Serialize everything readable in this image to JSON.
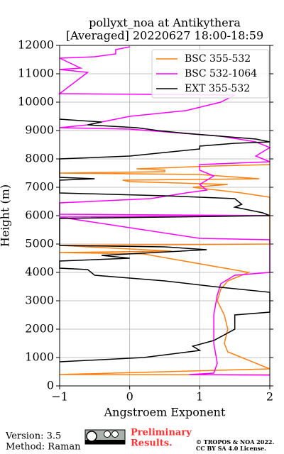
{
  "chart_data": {
    "type": "line",
    "title": "pollyxt_noa at Antikythera",
    "subtitle": "[Averaged] 20220627 18:00-18:59",
    "x_label": "Angstroem Exponent",
    "y_label": "Height (m)",
    "xlim": [
      -1,
      2
    ],
    "ylim": [
      0,
      12000
    ],
    "xticks": [
      {
        "value": -1,
        "label": "−1"
      },
      0,
      1,
      2
    ],
    "yticks": [
      0,
      1000,
      2000,
      3000,
      4000,
      5000,
      6000,
      7000,
      8000,
      9000,
      10000,
      11000,
      12000
    ],
    "grid": true,
    "legend": "upper right",
    "series": [
      {
        "name": "BSC 355-532",
        "color": "#ff7f0e",
        "heights": [
          7800,
          7750,
          7650,
          7600,
          7550,
          7500,
          7450,
          7300,
          7250,
          7200,
          7100,
          7000,
          6800,
          6650,
          5000,
          4950,
          4750,
          4700,
          4650,
          4000,
          3900,
          3700,
          3400,
          3000,
          2500,
          2000,
          1500,
          1200,
          1000,
          600,
          400,
          390
        ],
        "values": [
          2.0,
          1.2,
          0.1,
          0.5,
          0.5,
          -1.0,
          1.0,
          1.85,
          -0.1,
          0.0,
          1.4,
          0.9,
          1.6,
          2.0,
          2.0,
          -1.0,
          0.6,
          -1.0,
          0.2,
          1.7,
          1.6,
          1.4,
          1.3,
          1.25,
          1.35,
          1.4,
          1.35,
          1.4,
          1.6,
          2.0,
          -1.0,
          2.0
        ]
      },
      {
        "name": "BSC 532-1064",
        "color": "#ff00ff",
        "heights": [
          11950,
          11850,
          11700,
          11600,
          11550,
          11200,
          11150,
          11050,
          10300,
          10250,
          10000,
          9700,
          9500,
          9300,
          9200,
          9100,
          9050,
          8800,
          8600,
          8400,
          8100,
          7900,
          7800,
          7600,
          7400,
          7100,
          6900,
          6800,
          6600,
          6450,
          6050,
          6000,
          5950,
          5200,
          5150,
          5000,
          4000,
          3900,
          3600,
          3200,
          2500,
          1500,
          800,
          450,
          400,
          380
        ],
        "values": [
          0.0,
          -0.2,
          -0.2,
          -0.5,
          -1.0,
          -0.7,
          -1.0,
          -0.6,
          -1.0,
          1.5,
          1.3,
          0.8,
          0.0,
          -0.4,
          -0.6,
          -1.0,
          0.0,
          1.3,
          1.8,
          2.0,
          1.8,
          2.0,
          1.0,
          1.0,
          1.2,
          1.0,
          1.1,
          0.8,
          0.3,
          -1.0,
          -1.0,
          2.0,
          -1.0,
          1.0,
          2.0,
          2.0,
          2.0,
          1.5,
          1.3,
          1.25,
          1.2,
          1.2,
          1.25,
          1.2,
          0.85,
          2.0
        ]
      },
      {
        "name": "EXT 355-532",
        "color": "#000000",
        "heights": [
          9400,
          9300,
          9200,
          9100,
          9000,
          8900,
          8800,
          8700,
          8600,
          8550,
          8450,
          8350,
          8100,
          8000,
          7350,
          7300,
          7250,
          6800,
          6700,
          6600,
          6400,
          6300,
          6100,
          6000,
          5900,
          4950,
          4900,
          4800,
          4600,
          4500,
          4400,
          4150,
          4100,
          3900,
          3700,
          3500,
          3300,
          2600,
          2500,
          2000,
          1600,
          1400,
          1250,
          1000,
          850
        ],
        "values": [
          -1.0,
          -0.4,
          -0.6,
          0.1,
          0.4,
          0.8,
          1.3,
          1.8,
          2.0,
          1.5,
          1.0,
          1.0,
          0.0,
          -1.0,
          -1.0,
          -0.5,
          -1.0,
          -1.0,
          0.5,
          1.5,
          1.6,
          1.5,
          1.9,
          2.0,
          -1.0,
          -1.0,
          0.5,
          1.1,
          -0.4,
          0.0,
          -1.0,
          -1.0,
          -0.6,
          -0.5,
          0.5,
          1.2,
          2.0,
          2.0,
          1.5,
          1.5,
          1.2,
          0.9,
          1.0,
          0.2,
          -1.0
        ]
      }
    ]
  },
  "footer": {
    "version": "Version: 3.5",
    "method": "Method: Raman",
    "notice": "Preliminary",
    "notice2": "Results.",
    "copyright": "© TROPOS & NOA 2022.",
    "license": "CC BY SA 4.0 License."
  }
}
